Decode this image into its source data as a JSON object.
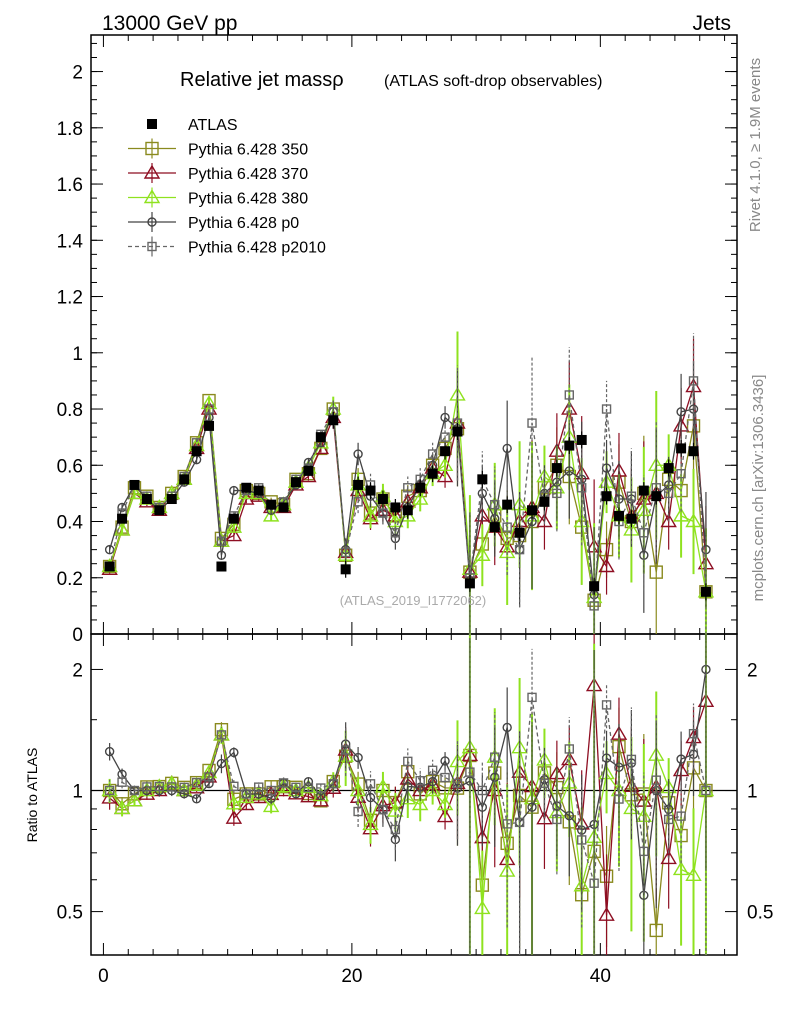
{
  "header": {
    "left": "13000 GeV pp",
    "right": "Jets"
  },
  "title": {
    "main": "Relative jet massρ",
    "sub": "(ATLAS soft-drop observables)"
  },
  "side_labels": {
    "rivet": "Rivet 4.1.0, ≥ 1.9M events",
    "mcplots": "mcplots.cern.ch [arXiv:1306.3436]"
  },
  "watermark": "(ATLAS_2019_I1772062)",
  "ratio_ylabel": "Ratio to ATLAS",
  "colors": {
    "atlas": "#000000",
    "p350": "#8a8a1e",
    "p370": "#8e0e22",
    "p380": "#8fe21f",
    "p0": "#444444",
    "p2010": "#666666"
  },
  "chart_data": [
    {
      "type": "scatter",
      "name": "main",
      "title": "Relative jet massρ",
      "xlim": [
        -1,
        51
      ],
      "ylim": [
        0,
        2.13
      ],
      "y_ticks": [
        0,
        0.2,
        0.4,
        0.6,
        0.8,
        1,
        1.2,
        1.4,
        1.6,
        1.8,
        2
      ],
      "y_tick_labels": [
        "0",
        "0.2",
        "0.4",
        "0.6",
        "0.8",
        "1",
        "1.2",
        "1.4",
        "1.6",
        "1.8",
        "2"
      ],
      "legend": [
        "ATLAS",
        "Pythia 6.428 350",
        "Pythia 6.428 370",
        "Pythia 6.428 380",
        "Pythia 6.428 p0",
        "Pythia 6.428 p2010"
      ],
      "legend_position": "top-left",
      "series": [
        {
          "name": "ATLAS",
          "style": "square-filled",
          "values": [
            0.24,
            0.41,
            0.53,
            0.48,
            0.44,
            0.48,
            0.55,
            0.65,
            0.74,
            0.24,
            0.41,
            0.52,
            0.51,
            0.46,
            0.45,
            0.54,
            0.58,
            0.7,
            0.76,
            0.23,
            0.53,
            0.51,
            0.48,
            0.45,
            0.44,
            0.52,
            0.57,
            0.65,
            0.72,
            0.18,
            0.55,
            0.38,
            0.46,
            0.36,
            0.44,
            0.47,
            0.59,
            0.67,
            0.69,
            0.17,
            0.49,
            0.42,
            0.41,
            0.51,
            0.49,
            0.59,
            0.66,
            0.65,
            0.15
          ]
        },
        {
          "name": "Pythia 6.428 350",
          "style": "square-open",
          "values": [
            0.24,
            0.38,
            0.52,
            0.49,
            0.45,
            0.5,
            0.56,
            0.68,
            0.83,
            0.34,
            0.39,
            0.51,
            0.5,
            0.47,
            0.46,
            0.55,
            0.57,
            0.66,
            0.8,
            0.28,
            0.55,
            0.43,
            0.48,
            0.42,
            0.49,
            0.51,
            0.6,
            0.66,
            0.73,
            0.22,
            0.32,
            0.42,
            0.34,
            0.35,
            0.4,
            0.52,
            0.6,
            0.56,
            0.38,
            0.12,
            0.3,
            0.54,
            0.4,
            0.5,
            0.22,
            0.55,
            0.51,
            0.74,
            0.15
          ]
        },
        {
          "name": "Pythia 6.428 370",
          "style": "triangle-open",
          "values": [
            0.23,
            0.37,
            0.5,
            0.47,
            0.44,
            0.5,
            0.55,
            0.66,
            0.8,
            0.33,
            0.35,
            0.48,
            0.49,
            0.45,
            0.45,
            0.53,
            0.56,
            0.66,
            0.77,
            0.29,
            0.51,
            0.41,
            0.44,
            0.42,
            0.47,
            0.52,
            0.59,
            0.56,
            0.75,
            0.22,
            0.42,
            0.38,
            0.31,
            0.4,
            0.45,
            0.4,
            0.65,
            0.8,
            0.57,
            0.31,
            0.24,
            0.58,
            0.42,
            0.48,
            0.5,
            0.4,
            0.74,
            0.88,
            0.25
          ]
        },
        {
          "name": "Pythia 6.428 380",
          "style": "triangle-open",
          "values": [
            0.24,
            0.37,
            0.5,
            0.48,
            0.45,
            0.5,
            0.55,
            0.67,
            0.82,
            0.33,
            0.38,
            0.5,
            0.5,
            0.42,
            0.46,
            0.54,
            0.59,
            0.68,
            0.8,
            0.28,
            0.53,
            0.42,
            0.49,
            0.4,
            0.42,
            0.48,
            0.57,
            0.6,
            0.85,
            0.23,
            0.28,
            0.46,
            0.29,
            0.46,
            0.42,
            0.56,
            0.52,
            0.7,
            0.4,
            0.13,
            0.54,
            0.42,
            0.37,
            0.44,
            0.6,
            0.6,
            0.42,
            0.4,
            0.15
          ]
        },
        {
          "name": "Pythia 6.428 p0",
          "style": "circle-open",
          "values": [
            0.3,
            0.45,
            0.53,
            0.48,
            0.44,
            0.48,
            0.54,
            0.62,
            0.77,
            0.28,
            0.51,
            0.51,
            0.5,
            0.44,
            0.47,
            0.53,
            0.61,
            0.68,
            0.79,
            0.3,
            0.64,
            0.49,
            0.43,
            0.34,
            0.45,
            0.53,
            0.6,
            0.77,
            0.73,
            0.19,
            0.5,
            0.41,
            0.66,
            0.3,
            0.4,
            0.5,
            0.54,
            0.58,
            0.55,
            0.14,
            0.59,
            0.48,
            0.48,
            0.28,
            0.49,
            0.53,
            0.79,
            0.8,
            0.3
          ]
        },
        {
          "name": "Pythia 6.428 p2010",
          "style": "square-open-dashed",
          "values": [
            0.24,
            0.43,
            0.53,
            0.49,
            0.45,
            0.49,
            0.56,
            0.68,
            0.8,
            0.33,
            0.42,
            0.51,
            0.52,
            0.46,
            0.47,
            0.55,
            0.59,
            0.71,
            0.79,
            0.29,
            0.47,
            0.53,
            0.43,
            0.36,
            0.52,
            0.55,
            0.64,
            0.7,
            0.75,
            0.2,
            0.55,
            0.46,
            0.38,
            0.3,
            0.75,
            0.49,
            0.5,
            0.85,
            0.52,
            0.1,
            0.8,
            0.4,
            0.49,
            0.36,
            0.52,
            0.5,
            0.57,
            0.9,
            0.15
          ]
        }
      ]
    },
    {
      "type": "scatter",
      "name": "ratio",
      "ylabel": "Ratio to ATLAS",
      "xlim": [
        -1,
        51
      ],
      "ylim": [
        0.39,
        2.45
      ],
      "scale": "log",
      "x_ticks": [
        0,
        20,
        40
      ],
      "x_tick_labels": [
        "0",
        "20",
        "40"
      ],
      "y_ticks": [
        0.5,
        1,
        2
      ],
      "y_tick_labels": [
        "0.5",
        "1",
        "2"
      ]
    }
  ]
}
